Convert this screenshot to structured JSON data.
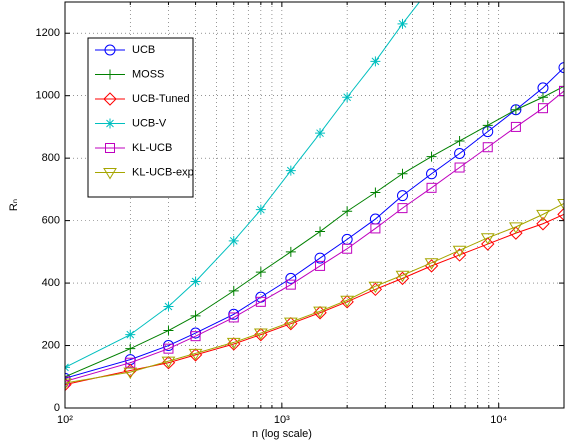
{
  "chart_data": {
    "type": "line",
    "xscale": "log",
    "xlabel": "n (log scale)",
    "ylabel": "Rₙ",
    "x": [
      100,
      200,
      300,
      400,
      600,
      800,
      1100,
      1500,
      2000,
      2700,
      3600,
      4900,
      6600,
      8900,
      12000,
      16000,
      20000
    ],
    "xlim": [
      100,
      20000
    ],
    "ylim": [
      0,
      1300
    ],
    "xticks": [
      {
        "value": 100,
        "label": "10²"
      },
      {
        "value": 1000,
        "label": "10³"
      },
      {
        "value": 10000,
        "label": "10⁴"
      }
    ],
    "xminorticks": [
      200,
      300,
      400,
      500,
      600,
      700,
      800,
      900,
      2000,
      3000,
      4000,
      5000,
      6000,
      7000,
      8000,
      9000
    ],
    "yticks": [
      0,
      200,
      400,
      600,
      800,
      1000,
      1200
    ],
    "grid": true,
    "legend": "upper left",
    "series": [
      {
        "name": "UCB",
        "color": "#0000ff",
        "marker": "o",
        "values": [
          95,
          155,
          200,
          240,
          300,
          355,
          415,
          480,
          540,
          605,
          680,
          750,
          815,
          885,
          955,
          1025,
          1090
        ]
      },
      {
        "name": "MOSS",
        "color": "#008000",
        "marker": "+",
        "values": [
          100,
          190,
          248,
          295,
          375,
          435,
          500,
          565,
          630,
          690,
          750,
          805,
          855,
          905,
          955,
          995,
          1030
        ]
      },
      {
        "name": "UCB-Tuned",
        "color": "#ff0000",
        "marker": "d",
        "values": [
          75,
          120,
          145,
          170,
          205,
          235,
          270,
          305,
          340,
          380,
          415,
          455,
          490,
          525,
          560,
          590,
          620
        ]
      },
      {
        "name": "UCB-V",
        "color": "#00bfbf",
        "marker": "*",
        "values": [
          130,
          235,
          325,
          405,
          535,
          635,
          760,
          880,
          995,
          1110,
          1230,
          1350,
          null,
          null,
          null,
          null,
          null
        ]
      },
      {
        "name": "KL-UCB",
        "color": "#bf00bf",
        "marker": "s",
        "values": [
          85,
          145,
          190,
          230,
          290,
          340,
          395,
          455,
          510,
          575,
          640,
          705,
          770,
          835,
          900,
          960,
          1015
        ]
      },
      {
        "name": "KL-UCB-exp",
        "color": "#a6a600",
        "marker": "v",
        "values": [
          80,
          115,
          150,
          175,
          210,
          240,
          275,
          310,
          345,
          390,
          425,
          465,
          505,
          545,
          580,
          620,
          655
        ]
      }
    ]
  }
}
